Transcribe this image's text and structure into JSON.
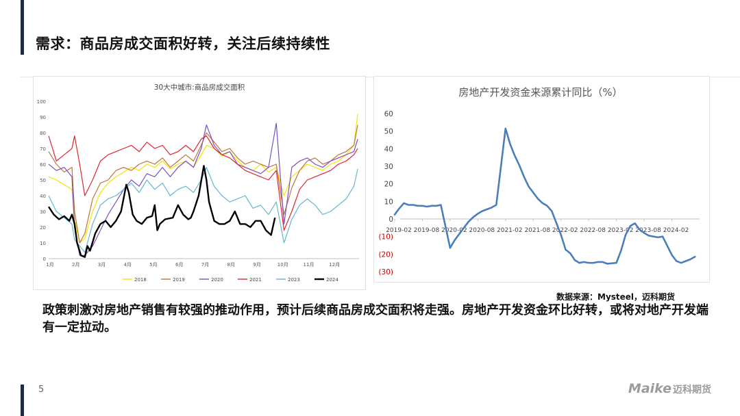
{
  "page": {
    "title": "需求：商品房成交面积好转，关注后续持续性",
    "source": "数据来源：Mysteel，迈科期货",
    "body": "政策刺激对房地产销售有较强的推动作用，预计后续商品房成交面积将走强。房地产开发资金环比好转，或将对地产开发端有一定拉动。",
    "page_number": "5",
    "logo_latin": "Maike",
    "logo_cn": "迈科期货"
  },
  "colors": {
    "accent": "#1f2a44",
    "s2018": "#f2e600",
    "s2019": "#c0733a",
    "s2020": "#7a4fc4",
    "s2021": "#e0242f",
    "s2023": "#63b7cf",
    "s2024": "#000000",
    "right_line": "#4a7ebb"
  },
  "chart_data": [
    {
      "type": "line",
      "title": "30大中城市:商品房成交面积",
      "x_ticks": [
        "1月",
        "2月",
        "3月",
        "4月",
        "5月",
        "6月",
        "7月",
        "8月",
        "9月",
        "10月",
        "11月",
        "12月"
      ],
      "ylim": [
        0,
        100
      ],
      "y_ticks": [
        0,
        10,
        20,
        30,
        40,
        50,
        60,
        70,
        80,
        90,
        100
      ],
      "legend_position": "bottom",
      "series": [
        {
          "name": "2018",
          "color_key": "s2018",
          "x": [
            1,
            1.3,
            1.6,
            1.9,
            2.0,
            2.2,
            2.4,
            2.7,
            3.0,
            3.3,
            3.6,
            3.9,
            4.2,
            4.5,
            4.8,
            5.1,
            5.4,
            5.7,
            6.0,
            6.3,
            6.6,
            6.9,
            7.1,
            7.4,
            7.7,
            8.0,
            8.3,
            8.6,
            8.9,
            9.2,
            9.5,
            9.8,
            10.1,
            10.4,
            10.7,
            11.0,
            11.3,
            11.6,
            11.9,
            12.2,
            12.5,
            12.8,
            12.95
          ],
          "y": [
            52,
            50,
            47,
            44,
            25,
            10,
            13,
            30,
            42,
            48,
            52,
            55,
            58,
            56,
            60,
            58,
            62,
            57,
            60,
            62,
            58,
            66,
            72,
            70,
            65,
            68,
            62,
            58,
            56,
            60,
            55,
            58,
            40,
            52,
            56,
            60,
            58,
            56,
            60,
            62,
            66,
            72,
            92
          ]
        },
        {
          "name": "2019",
          "color_key": "s2019",
          "x": [
            1,
            1.3,
            1.6,
            1.9,
            2.0,
            2.2,
            2.4,
            2.7,
            3.0,
            3.3,
            3.6,
            3.9,
            4.2,
            4.5,
            4.8,
            5.1,
            5.4,
            5.7,
            6.0,
            6.3,
            6.6,
            6.9,
            7.1,
            7.4,
            7.7,
            8.0,
            8.3,
            8.6,
            8.9,
            9.2,
            9.5,
            9.8,
            10.1,
            10.4,
            10.7,
            11.0,
            11.3,
            11.6,
            11.9,
            12.2,
            12.5,
            12.8,
            12.95
          ],
          "y": [
            68,
            60,
            55,
            58,
            30,
            10,
            16,
            38,
            48,
            50,
            56,
            58,
            56,
            60,
            62,
            60,
            64,
            58,
            62,
            66,
            62,
            72,
            80,
            74,
            68,
            70,
            64,
            60,
            62,
            60,
            58,
            60,
            28,
            45,
            56,
            62,
            64,
            60,
            62,
            66,
            68,
            72,
            85
          ]
        },
        {
          "name": "2020",
          "color_key": "s2020",
          "x": [
            1,
            1.3,
            1.6,
            1.9,
            2.0,
            2.2,
            2.4,
            2.7,
            3.0,
            3.3,
            3.6,
            3.9,
            4.2,
            4.5,
            4.8,
            5.1,
            5.4,
            5.7,
            6.0,
            6.3,
            6.6,
            6.9,
            7.1,
            7.4,
            7.7,
            8.0,
            8.3,
            8.6,
            8.9,
            9.2,
            9.5,
            9.8,
            10.1,
            10.4,
            10.7,
            11.0,
            11.3,
            11.6,
            11.9,
            12.2,
            12.5,
            12.8,
            12.95
          ],
          "y": [
            60,
            56,
            58,
            52,
            20,
            2,
            2,
            8,
            18,
            28,
            36,
            44,
            50,
            46,
            54,
            52,
            58,
            52,
            58,
            62,
            58,
            70,
            85,
            72,
            66,
            68,
            60,
            58,
            56,
            54,
            58,
            86,
            22,
            58,
            62,
            64,
            60,
            58,
            62,
            64,
            66,
            68,
            76
          ]
        },
        {
          "name": "2021",
          "color_key": "s2021",
          "x": [
            1,
            1.3,
            1.6,
            1.9,
            2.0,
            2.2,
            2.4,
            2.7,
            3.0,
            3.3,
            3.6,
            3.9,
            4.2,
            4.5,
            4.8,
            5.1,
            5.4,
            5.7,
            6.0,
            6.3,
            6.6,
            6.9,
            7.1,
            7.4,
            7.7,
            8.0,
            8.3,
            8.6,
            8.9,
            9.2,
            9.5,
            9.8,
            10.1,
            10.4,
            10.7,
            11.0,
            11.3,
            11.6,
            11.9,
            12.2,
            12.5,
            12.8,
            12.95
          ],
          "y": [
            78,
            62,
            66,
            70,
            78,
            60,
            40,
            50,
            62,
            66,
            68,
            70,
            72,
            68,
            74,
            70,
            72,
            66,
            68,
            72,
            68,
            76,
            78,
            70,
            66,
            64,
            60,
            56,
            54,
            52,
            50,
            56,
            18,
            30,
            44,
            50,
            52,
            54,
            56,
            60,
            62,
            66,
            70
          ]
        },
        {
          "name": "2023",
          "color_key": "s2023",
          "x": [
            1,
            1.3,
            1.6,
            1.9,
            2.0,
            2.2,
            2.4,
            2.7,
            3.0,
            3.3,
            3.6,
            3.9,
            4.2,
            4.5,
            4.8,
            5.1,
            5.4,
            5.7,
            6.0,
            6.3,
            6.6,
            6.9,
            7.1,
            7.4,
            7.7,
            8.0,
            8.3,
            8.6,
            8.9,
            9.2,
            9.5,
            9.8,
            10.1,
            10.4,
            10.7,
            11.0,
            11.3,
            11.6,
            11.9,
            12.2,
            12.5,
            12.8,
            12.95
          ],
          "y": [
            40,
            30,
            26,
            22,
            12,
            8,
            4,
            22,
            34,
            38,
            40,
            44,
            48,
            42,
            50,
            44,
            48,
            40,
            44,
            46,
            42,
            50,
            58,
            46,
            40,
            36,
            38,
            40,
            32,
            34,
            28,
            36,
            10,
            25,
            34,
            38,
            34,
            28,
            30,
            34,
            38,
            46,
            57
          ]
        },
        {
          "name": "2024",
          "color_key": "s2024",
          "x": [
            1,
            1.2,
            1.4,
            1.6,
            1.8,
            1.9,
            2.0,
            2.1,
            2.25,
            2.4,
            2.5,
            2.6,
            2.8,
            3.0,
            3.2,
            3.4,
            3.6,
            3.8,
            4.0,
            4.1,
            4.25,
            4.4,
            4.6,
            4.8,
            5.0,
            5.1,
            5.2,
            5.3,
            5.5,
            5.8,
            6.0,
            6.2,
            6.4,
            6.5,
            6.6,
            6.8,
            7.0,
            7.1,
            7.2,
            7.4,
            7.6,
            7.8,
            8.0,
            8.2,
            8.4,
            8.6,
            8.8,
            9.0,
            9.2,
            9.4,
            9.6,
            9.75
          ],
          "y": [
            33,
            28,
            25,
            27,
            24,
            28,
            22,
            10,
            2,
            1,
            8,
            5,
            16,
            22,
            24,
            20,
            24,
            30,
            47,
            42,
            28,
            24,
            22,
            26,
            27,
            34,
            18,
            22,
            25,
            26,
            34,
            28,
            25,
            26,
            30,
            40,
            59,
            50,
            36,
            24,
            22,
            22,
            24,
            30,
            22,
            22,
            20,
            24,
            24,
            18,
            15,
            26
          ]
        }
      ]
    },
    {
      "type": "line",
      "title": "房地产开发资金来源累计同比（%）",
      "x_ticks": [
        "2019-02",
        "2019-08",
        "2020-02",
        "2020-08",
        "2021-02",
        "2021-08",
        "2022-02",
        "2022-08",
        "2023-02",
        "2023-08",
        "2024-02"
      ],
      "y_tick_labels": [
        "60",
        "50",
        "40",
        "30",
        "20",
        "10",
        "0",
        "(10)",
        "(20)",
        "(30)"
      ],
      "y_tick_values": [
        60,
        50,
        40,
        30,
        20,
        10,
        0,
        -10,
        -20,
        -30
      ],
      "ylim": [
        -30,
        60
      ],
      "x": [
        "2019-02",
        "2019-03",
        "2019-04",
        "2019-05",
        "2019-06",
        "2019-07",
        "2019-08",
        "2019-09",
        "2019-10",
        "2019-11",
        "2019-12",
        "2020-02",
        "2020-03",
        "2020-04",
        "2020-05",
        "2020-06",
        "2020-07",
        "2020-08",
        "2020-09",
        "2020-10",
        "2020-11",
        "2020-12",
        "2021-02",
        "2021-03",
        "2021-04",
        "2021-05",
        "2021-06",
        "2021-07",
        "2021-08",
        "2021-09",
        "2021-10",
        "2021-11",
        "2021-12",
        "2022-02",
        "2022-03",
        "2022-04",
        "2022-05",
        "2022-06",
        "2022-07",
        "2022-08",
        "2022-09",
        "2022-10",
        "2022-11",
        "2022-12",
        "2023-02",
        "2023-03",
        "2023-04",
        "2023-05",
        "2023-06",
        "2023-07",
        "2023-08",
        "2023-09",
        "2023-10",
        "2023-11",
        "2023-12",
        "2024-02",
        "2024-03",
        "2024-04",
        "2024-05",
        "2024-06",
        "2024-07"
      ],
      "y": [
        2.5,
        6,
        9,
        8,
        8,
        7.5,
        7.5,
        7,
        7.5,
        7.5,
        8,
        -16.5,
        -12,
        -8.5,
        -5,
        -1.5,
        1,
        3,
        4.5,
        5.5,
        6.5,
        8,
        51.5,
        42.5,
        36,
        30.5,
        24,
        18.5,
        15,
        11.5,
        9,
        7.5,
        4.5,
        -9,
        -17.5,
        -19.5,
        -23.5,
        -25,
        -24.5,
        -25,
        -25,
        -24.5,
        -24.5,
        -25.5,
        -25,
        -18,
        -9,
        -4,
        -2.5,
        -6,
        -8,
        -9.5,
        -10,
        -10.5,
        -10,
        -20.5,
        -24,
        -25,
        -24,
        -23,
        -21.5
      ]
    }
  ]
}
